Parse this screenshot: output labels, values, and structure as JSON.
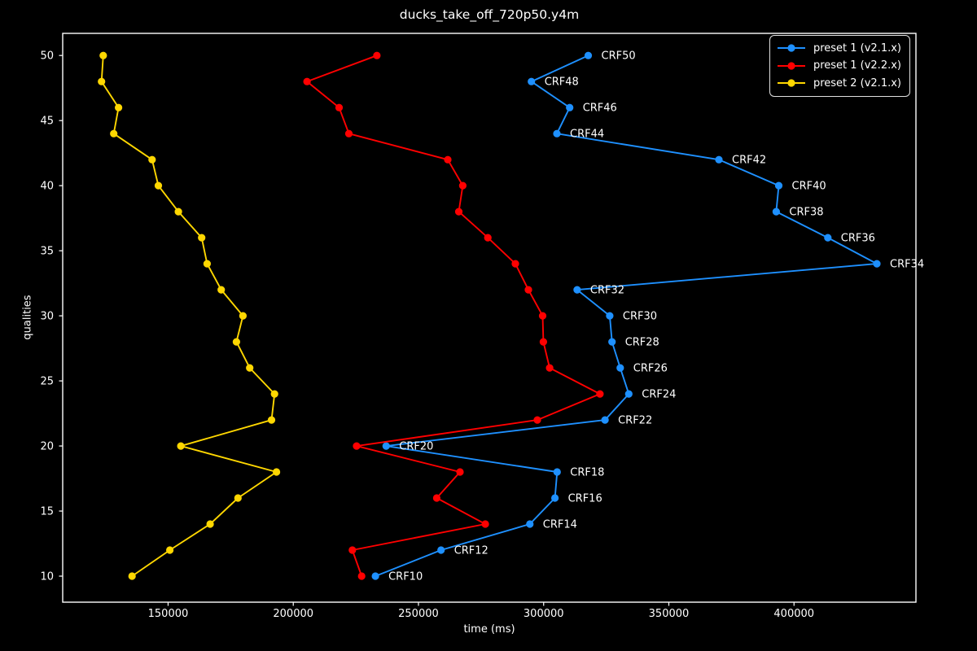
{
  "chart_data": {
    "type": "line",
    "title": "ducks_take_off_720p50.y4m",
    "xlabel": "time (ms)",
    "ylabel": "qualities",
    "xlim": [
      107900,
      448700
    ],
    "ylim": [
      8,
      51.7
    ],
    "x_ticks": [
      150000,
      200000,
      250000,
      300000,
      350000,
      400000
    ],
    "y_ticks": [
      10,
      15,
      20,
      25,
      30,
      35,
      40,
      45,
      50
    ],
    "grid": false,
    "background_color": "#000000",
    "text_color": "#ffffff",
    "spine_color": "#ffffff",
    "legend_position": "upper right",
    "qualities": [
      10,
      12,
      14,
      16,
      18,
      20,
      22,
      24,
      26,
      28,
      30,
      32,
      34,
      36,
      38,
      40,
      42,
      44,
      46,
      48,
      50
    ],
    "series": [
      {
        "name": "preset 1 (v2.1.x)",
        "color": "#1e90ff",
        "times_ms": [
          232800,
          259000,
          294500,
          304500,
          305400,
          237100,
          324500,
          334000,
          330600,
          327300,
          326400,
          313400,
          433100,
          413500,
          392900,
          393900,
          370000,
          305300,
          310400,
          295100,
          317800
        ],
        "point_labels": [
          "CRF10",
          "CRF12",
          "CRF14",
          "CRF16",
          "CRF18",
          "CRF20",
          "CRF22",
          "CRF24",
          "CRF26",
          "CRF28",
          "CRF30",
          "CRF32",
          "CRF34",
          "CRF36",
          "CRF38",
          "CRF40",
          "CRF42",
          "CRF44",
          "CRF46",
          "CRF48",
          "CRF50"
        ]
      },
      {
        "name": "preset 1 (v2.2.x)",
        "color": "#ff0000",
        "times_ms": [
          227300,
          223600,
          276700,
          257300,
          266600,
          225300,
          297500,
          322500,
          302400,
          299900,
          299600,
          293900,
          288700,
          277700,
          266100,
          267700,
          261700,
          222200,
          218300,
          205500,
          233400
        ],
        "point_labels": []
      },
      {
        "name": "preset 2 (v2.1.x)",
        "color": "#ffd700",
        "times_ms": [
          135600,
          150700,
          166800,
          177900,
          193300,
          155100,
          191300,
          192500,
          182600,
          177300,
          179900,
          171200,
          165600,
          163400,
          154100,
          146100,
          143600,
          128300,
          130200,
          123400,
          124100
        ],
        "point_labels": []
      }
    ]
  }
}
